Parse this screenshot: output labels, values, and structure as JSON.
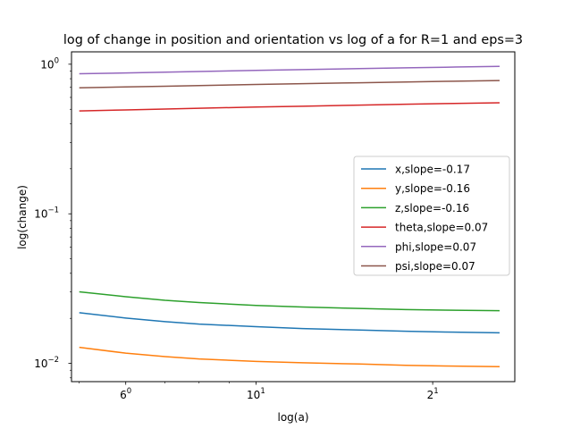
{
  "chart_data": {
    "type": "line",
    "title": "log of change in position and orientation vs log of a for R=1 and eps=3",
    "xlabel": "log(a)",
    "ylabel": "log(change)",
    "xscale": "log",
    "yscale": "log",
    "xlim": [
      4.85,
      27.6
    ],
    "ylim": [
      0.00755,
      1.21
    ],
    "legend_position": "center-right",
    "grid": false,
    "x_ticks": [
      {
        "value": 6,
        "base": "6",
        "exp": "0"
      },
      {
        "value": 10,
        "base": "10",
        "exp": "1"
      },
      {
        "value": 20,
        "base": "2",
        "exp": "1"
      }
    ],
    "y_ticks": [
      {
        "value": 0.01,
        "base": "10",
        "exp": "−2"
      },
      {
        "value": 0.1,
        "base": "10",
        "exp": "−1"
      },
      {
        "value": 1,
        "base": "10",
        "exp": "0"
      }
    ],
    "x": [
      5,
      6,
      7,
      8,
      10,
      12,
      15,
      18,
      21,
      26
    ],
    "series": [
      {
        "name": "x,slope=-0.17",
        "color": "#1f77b4",
        "values": [
          0.0218,
          0.0201,
          0.019,
          0.0183,
          0.0176,
          0.0171,
          0.0167,
          0.0164,
          0.0162,
          0.016
        ]
      },
      {
        "name": "y,slope=-0.16",
        "color": "#ff7f0e",
        "values": [
          0.0128,
          0.0117,
          0.0111,
          0.0107,
          0.0103,
          0.0101,
          0.0099,
          0.0097,
          0.0096,
          0.0095
        ]
      },
      {
        "name": "z,slope=-0.16",
        "color": "#2ca02c",
        "values": [
          0.0301,
          0.0279,
          0.0264,
          0.0255,
          0.0244,
          0.0238,
          0.0233,
          0.0229,
          0.0227,
          0.0225
        ]
      },
      {
        "name": "theta,slope=0.07",
        "color": "#d62728",
        "values": [
          0.487,
          0.495,
          0.502,
          0.508,
          0.517,
          0.524,
          0.533,
          0.54,
          0.546,
          0.552
        ]
      },
      {
        "name": "phi,slope=0.07",
        "color": "#9467bd",
        "values": [
          0.863,
          0.874,
          0.885,
          0.894,
          0.909,
          0.921,
          0.935,
          0.946,
          0.955,
          0.967
        ]
      },
      {
        "name": "psi,slope=0.07",
        "color": "#8c564b",
        "values": [
          0.695,
          0.705,
          0.713,
          0.72,
          0.732,
          0.741,
          0.752,
          0.761,
          0.768,
          0.778
        ]
      }
    ]
  }
}
